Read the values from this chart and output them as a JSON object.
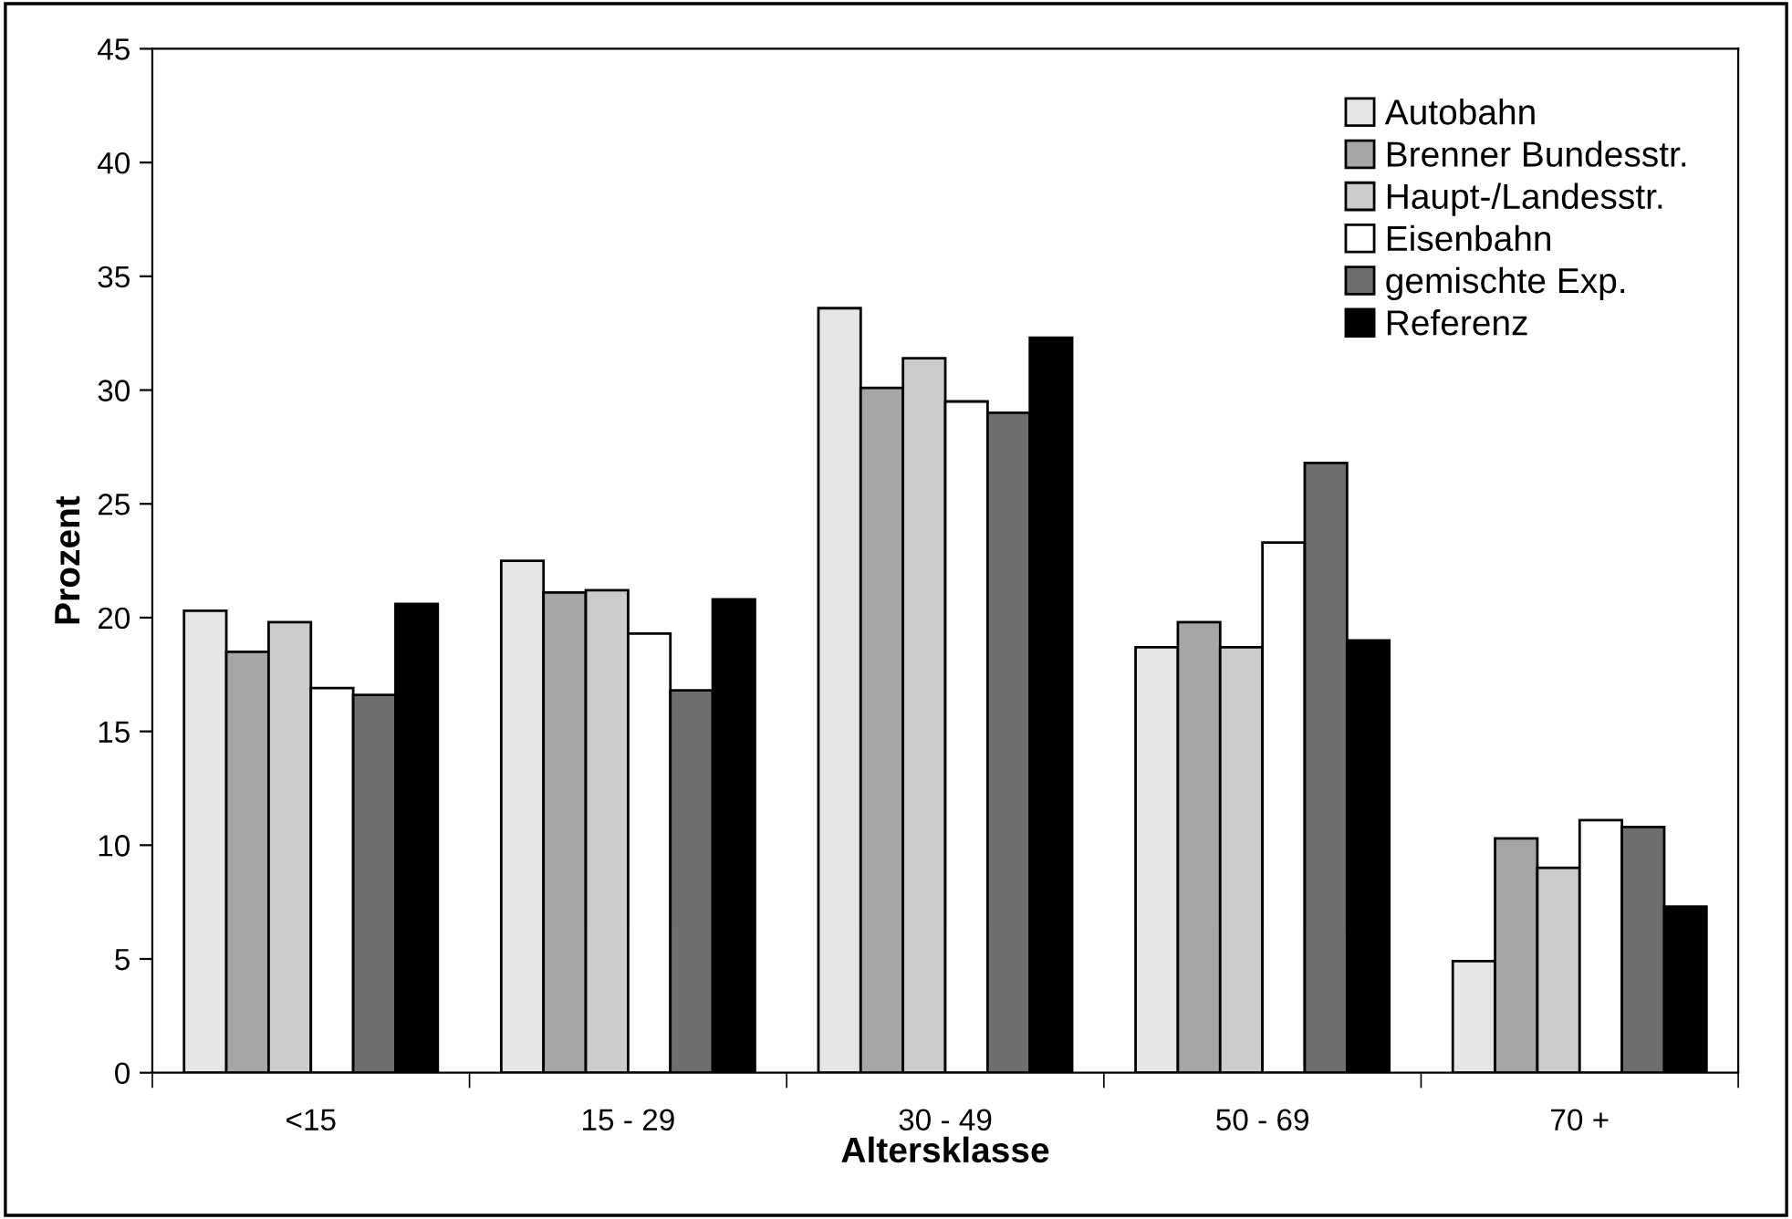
{
  "chart_data": {
    "type": "bar",
    "xlabel": "Altersklasse",
    "ylabel": "Prozent",
    "categories": [
      "<15",
      "15 - 29",
      "30 - 49",
      "50 - 69",
      "70 +"
    ],
    "series": [
      {
        "name": "Autobahn",
        "color": "#e6e6e6",
        "values": [
          20.3,
          22.5,
          33.6,
          18.7,
          4.9
        ]
      },
      {
        "name": "Brenner Bundesstr.",
        "color": "#a6a6a6",
        "values": [
          18.5,
          21.1,
          30.1,
          19.8,
          10.3
        ]
      },
      {
        "name": "Haupt-/Landesstr.",
        "color": "#cccccc",
        "values": [
          19.8,
          21.2,
          31.4,
          18.7,
          9.0
        ]
      },
      {
        "name": "Eisenbahn",
        "color": "#ffffff",
        "values": [
          16.9,
          19.3,
          29.5,
          23.3,
          11.1
        ]
      },
      {
        "name": "gemischte Exp.",
        "color": "#6e6e6e",
        "values": [
          16.6,
          16.8,
          29.0,
          26.8,
          10.8
        ]
      },
      {
        "name": "Referenz",
        "color": "#000000",
        "values": [
          20.6,
          20.8,
          32.3,
          19.0,
          7.3
        ]
      }
    ],
    "ylim": [
      0,
      45
    ],
    "yticks": [
      0,
      5,
      10,
      15,
      20,
      25,
      30,
      35,
      40,
      45
    ],
    "grid": false,
    "legend": "top right"
  }
}
